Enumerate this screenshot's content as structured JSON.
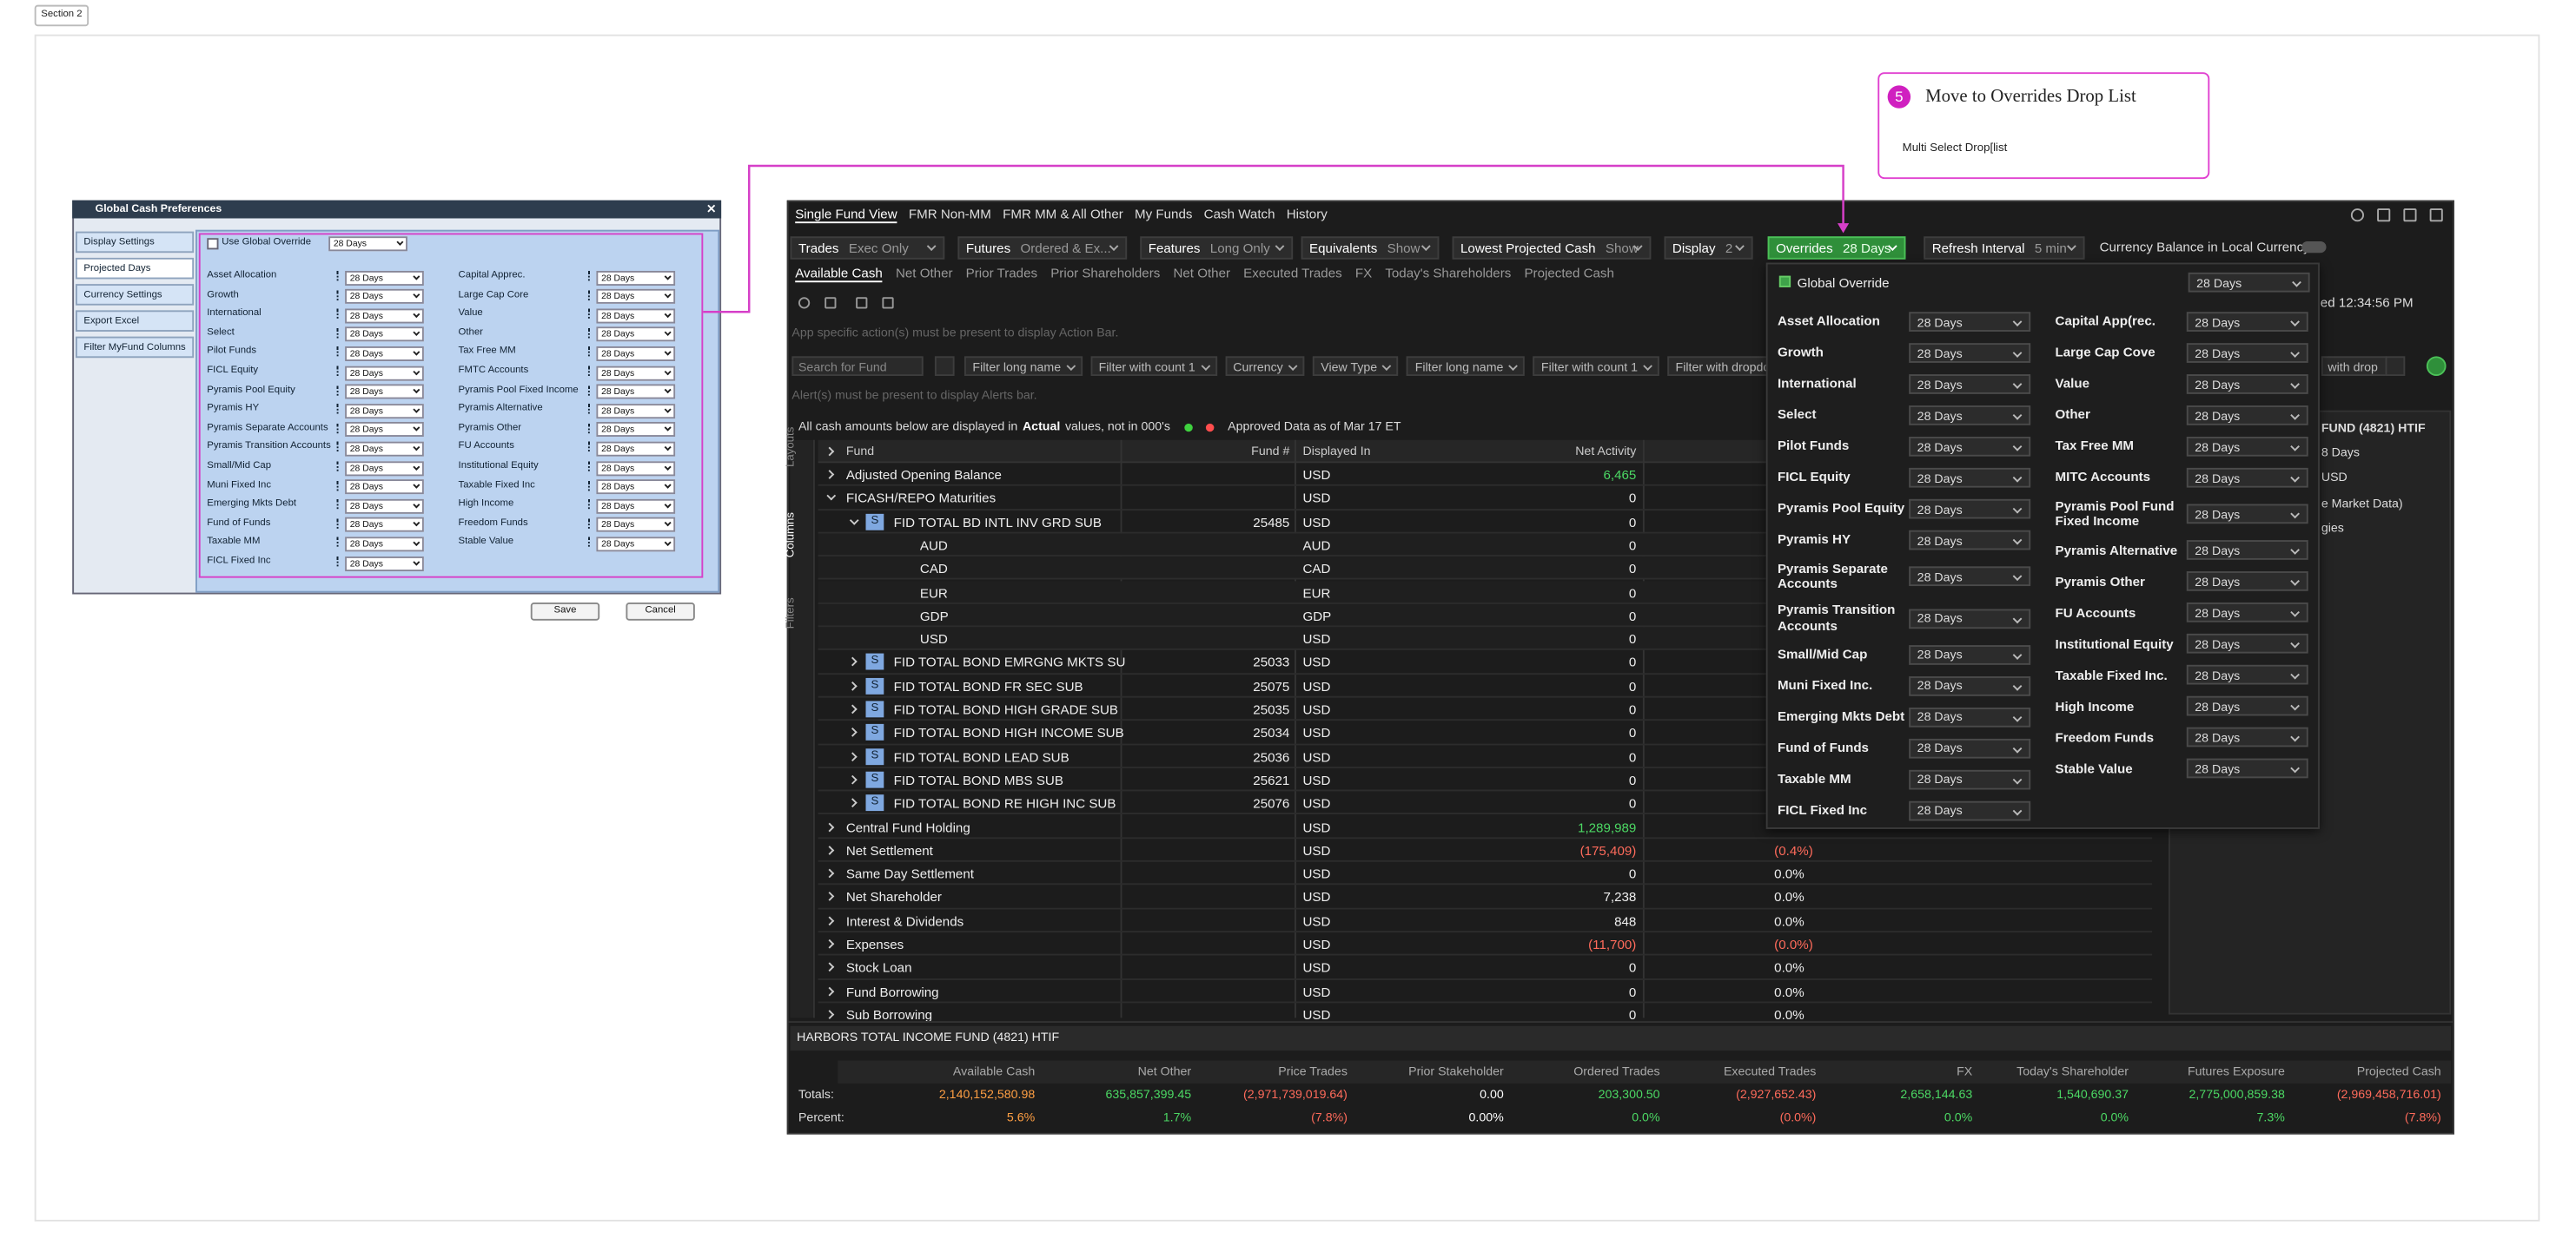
{
  "section_label": "Section 2",
  "callout": {
    "step": "5",
    "title": "Move to Overrides Drop List",
    "text": "Multi Select Drop[list"
  },
  "legacy_dialog": {
    "title": "Global Cash Preferences",
    "nav": [
      "Display Settings",
      "Projected Days",
      "Currency Settings",
      "Export Excel",
      "Filter MyFund Columns"
    ],
    "global_override": {
      "label": "Use Global Override",
      "value": "28 Days"
    },
    "left_fields": [
      {
        "label": "Asset Allocation",
        "value": "28 Days"
      },
      {
        "label": "Growth",
        "value": "28 Days"
      },
      {
        "label": "International",
        "value": "28 Days"
      },
      {
        "label": "Select",
        "value": "28 Days"
      },
      {
        "label": "Pilot Funds",
        "value": "28 Days"
      },
      {
        "label": "FICL Equity",
        "value": "28 Days"
      },
      {
        "label": "Pyramis Pool Equity",
        "value": "28 Days"
      },
      {
        "label": "Pyramis HY",
        "value": "28 Days"
      },
      {
        "label": "Pyramis Separate Accounts",
        "value": "28 Days"
      },
      {
        "label": "Pyramis Transition Accounts",
        "value": "28 Days"
      },
      {
        "label": "Small/Mid Cap",
        "value": "28 Days"
      },
      {
        "label": "Muni Fixed Inc",
        "value": "28 Days"
      },
      {
        "label": "Emerging Mkts Debt",
        "value": "28 Days"
      },
      {
        "label": "Fund of Funds",
        "value": "28 Days"
      },
      {
        "label": "Taxable MM",
        "value": "28 Days"
      },
      {
        "label": "FICL Fixed Inc",
        "value": "28 Days"
      }
    ],
    "right_fields": [
      {
        "label": "Capital Apprec.",
        "value": "28 Days"
      },
      {
        "label": "Large Cap Core",
        "value": "28 Days"
      },
      {
        "label": "Value",
        "value": "28 Days"
      },
      {
        "label": "Other",
        "value": "28 Days"
      },
      {
        "label": "Tax Free MM",
        "value": "28 Days"
      },
      {
        "label": "FMTC Accounts",
        "value": "28 Days"
      },
      {
        "label": "Pyramis Pool Fixed Income",
        "value": "28 Days"
      },
      {
        "label": "Pyramis Alternative",
        "value": "28 Days"
      },
      {
        "label": "Pyramis Other",
        "value": "28 Days"
      },
      {
        "label": "FU Accounts",
        "value": "28 Days"
      },
      {
        "label": "Institutional Equity",
        "value": "28 Days"
      },
      {
        "label": "Taxable Fixed Inc",
        "value": "28 Days"
      },
      {
        "label": "High Income",
        "value": "28 Days"
      },
      {
        "label": "Freedom Funds",
        "value": "28 Days"
      },
      {
        "label": "Stable Value",
        "value": "28 Days"
      }
    ],
    "buttons": [
      "Save",
      "Cancel"
    ]
  },
  "app": {
    "tabs": [
      "Single Fund View",
      "FMR Non-MM",
      "FMR MM & All Other",
      "My Funds",
      "Cash Watch",
      "History"
    ],
    "toolbar": [
      {
        "label": "Trades",
        "value": "Exec Only"
      },
      {
        "label": "Futures",
        "value": "Ordered & Ex..."
      },
      {
        "label": "Features",
        "value": "Long Only"
      },
      {
        "label": "Equivalents",
        "value": "Show"
      },
      {
        "label": "Lowest Projected Cash",
        "value": "Show"
      },
      {
        "label": "Display",
        "value": "2"
      },
      {
        "label": "Overrides",
        "value": "28 Days"
      },
      {
        "label": "Refresh Interval",
        "value": "5 min"
      }
    ],
    "currency_toggle": "Currency Balance in Local Currency",
    "subtabs": [
      "Available Cash",
      "Net Other",
      "Prior Trades",
      "Prior Shareholders",
      "Net Other",
      "Executed Trades",
      "FX",
      "Today's Shareholders",
      "Projected Cash"
    ],
    "refreshed": "hed 12:34:56 PM",
    "action_bar": "App specific action(s) must be present to display Action Bar.",
    "search_placeholder": "Search for Fund",
    "filters": [
      "Filter long name",
      "Filter with count  1",
      "Currency",
      "View Type",
      "Filter long name",
      "Filter with count  1",
      "Filter with dropdown"
    ],
    "filter_tail": "with drop",
    "alert_bar": "Alert(s) must be present to display Alerts bar.",
    "info": {
      "pre": "All cash amounts below are displayed in",
      "bold": "Actual",
      "post": "values, not in 000's",
      "approved": "Approved Data as of Mar 17 ET"
    },
    "side_tabs": [
      "Layouts",
      "Columns",
      "Filters"
    ],
    "grid": {
      "columns": [
        "Fund",
        "Fund #",
        "Displayed In",
        "Net Activity"
      ],
      "rows": [
        {
          "name": "Adjusted Opening Balance",
          "currency": "USD",
          "net": "6,465",
          "color": "#4cd964"
        },
        {
          "name": "FICASH/REPO Maturities",
          "currency": "USD",
          "net": "0",
          "children": [
            {
              "name": "FID TOTAL BD INTL INV GRD SUB",
              "badge": "S",
              "fund_no": "25485",
              "currency": "USD",
              "net": "0",
              "children": [
                {
                  "name": "AUD",
                  "currency": "AUD",
                  "net": "0"
                },
                {
                  "name": "CAD",
                  "currency": "CAD",
                  "net": "0"
                },
                {
                  "name": "EUR",
                  "currency": "EUR",
                  "net": "0"
                },
                {
                  "name": "GDP",
                  "currency": "GDP",
                  "net": "0"
                },
                {
                  "name": "USD",
                  "currency": "USD",
                  "net": "0"
                }
              ]
            },
            {
              "name": "FID TOTAL BOND EMRGNG MKTS SU",
              "badge": "S",
              "fund_no": "25033",
              "currency": "USD",
              "net": "0"
            },
            {
              "name": "FID TOTAL BOND FR SEC SUB",
              "badge": "S",
              "fund_no": "25075",
              "currency": "USD",
              "net": "0"
            },
            {
              "name": "FID TOTAL BOND HIGH GRADE SUB",
              "badge": "S",
              "fund_no": "25035",
              "currency": "USD",
              "net": "0"
            },
            {
              "name": "FID TOTAL BOND HIGH INCOME SUB",
              "badge": "S",
              "fund_no": "25034",
              "currency": "USD",
              "net": "0"
            },
            {
              "name": "FID TOTAL BOND LEAD SUB",
              "badge": "S",
              "fund_no": "25036",
              "currency": "USD",
              "net": "0"
            },
            {
              "name": "FID TOTAL BOND MBS SUB",
              "badge": "S",
              "fund_no": "25621",
              "currency": "USD",
              "net": "0"
            },
            {
              "name": "FID TOTAL BOND RE HIGH INC SUB",
              "badge": "S",
              "fund_no": "25076",
              "currency": "USD",
              "net": "0"
            }
          ]
        },
        {
          "name": "Central Fund Holding",
          "currency": "USD",
          "net": "1,289,989",
          "color": "#4cd964"
        },
        {
          "name": "Net Settlement",
          "currency": "USD",
          "net": "(175,409)",
          "pct": "(0.4%)",
          "color": "#ff6b5b"
        },
        {
          "name": "Same Day Settlement",
          "currency": "USD",
          "net": "0",
          "pct": "0.0%"
        },
        {
          "name": "Net Shareholder",
          "currency": "USD",
          "net": "7,238",
          "pct": "0.0%"
        },
        {
          "name": "Interest & Dividends",
          "currency": "USD",
          "net": "848",
          "pct": "0.0%"
        },
        {
          "name": "Expenses",
          "currency": "USD",
          "net": "(11,700)",
          "pct": "(0.0%)",
          "color": "#ff6b5b"
        },
        {
          "name": "Stock Loan",
          "currency": "USD",
          "net": "0",
          "pct": "0.0%"
        },
        {
          "name": "Fund Borrowing",
          "currency": "USD",
          "net": "0",
          "pct": "0.0%"
        },
        {
          "name": "Sub Borrowing",
          "currency": "USD",
          "net": "0",
          "pct": "0.0%"
        }
      ]
    },
    "side_panel": [
      "FUND (4821) HTIF",
      "8 Days",
      "USD",
      "e Market Data)",
      "gies"
    ],
    "summary": {
      "title": "HARBORS TOTAL INCOME FUND (4821) HTIF",
      "columns": [
        "Available Cash",
        "Net Other",
        "Price Trades",
        "Prior Stakeholder",
        "Ordered Trades",
        "Executed Trades",
        "FX",
        "Today's Shareholder",
        "Futures Exposure",
        "Projected Cash"
      ],
      "rows": [
        {
          "label": "Totals:",
          "values": [
            "2,140,152,580.98",
            "635,857,399.45",
            "(2,971,739,019.64)",
            "0.00",
            "203,300.50",
            "(2,927,652.43)",
            "2,658,144.63",
            "1,540,690.37",
            "2,775,000,859.38",
            "(2,969,458,716.01)"
          ],
          "colors": [
            "#ff9f43",
            "#4cd964",
            "#ff6b5b",
            "#ffffff",
            "#4cd964",
            "#ff6b5b",
            "#4cd964",
            "#4cd964",
            "#4cd964",
            "#ff6b5b"
          ]
        },
        {
          "label": "Percent:",
          "values": [
            "5.6%",
            "1.7%",
            "(7.8%)",
            "0.00%",
            "0.0%",
            "(0.0%)",
            "0.0%",
            "0.0%",
            "7.3%",
            "(7.8%)"
          ],
          "colors": [
            "#ff9f43",
            "#4cd964",
            "#ff6b5b",
            "#ffffff",
            "#4cd964",
            "#ff6b5b",
            "#4cd964",
            "#4cd964",
            "#4cd964",
            "#ff6b5b"
          ]
        }
      ]
    },
    "overrides_panel": {
      "global": {
        "label": "Global Override",
        "value": "28 Days"
      },
      "left": [
        {
          "label": "Asset Allocation",
          "value": "28 Days"
        },
        {
          "label": "Growth",
          "value": "28 Days"
        },
        {
          "label": "International",
          "value": "28 Days"
        },
        {
          "label": "Select",
          "value": "28 Days"
        },
        {
          "label": "Pilot Funds",
          "value": "28 Days"
        },
        {
          "label": "FICL Equity",
          "value": "28 Days"
        },
        {
          "label": "Pyramis Pool Equity",
          "value": "28 Days"
        },
        {
          "label": "Pyramis HY",
          "value": "28 Days"
        },
        {
          "label": "Pyramis Separate Accounts",
          "value": "28 Days"
        },
        {
          "label": "Pyramis Transition Accounts",
          "value": "28 Days"
        },
        {
          "label": "Small/Mid Cap",
          "value": "28 Days"
        },
        {
          "label": "Muni Fixed Inc.",
          "value": "28 Days"
        },
        {
          "label": "Emerging Mkts Debt",
          "value": "28 Days"
        },
        {
          "label": "Fund of Funds",
          "value": "28 Days"
        },
        {
          "label": "Taxable MM",
          "value": "28 Days"
        },
        {
          "label": "FICL Fixed Inc",
          "value": "28 Days"
        }
      ],
      "right": [
        {
          "label": "Capital App(rec.",
          "value": "28 Days"
        },
        {
          "label": "Large Cap Cove",
          "value": "28 Days"
        },
        {
          "label": "Value",
          "value": "28 Days"
        },
        {
          "label": "Other",
          "value": "28 Days"
        },
        {
          "label": "Tax Free MM",
          "value": "28 Days"
        },
        {
          "label": "MITC Accounts",
          "value": "28 Days"
        },
        {
          "label": "Pyramis Pool Fund Fixed Income",
          "value": "28 Days"
        },
        {
          "label": "Pyramis Alternative",
          "value": "28 Days"
        },
        {
          "label": "Pyramis Other",
          "value": "28 Days"
        },
        {
          "label": "FU Accounts",
          "value": "28 Days"
        },
        {
          "label": "Institutional Equity",
          "value": "28 Days"
        },
        {
          "label": "Taxable Fixed Inc.",
          "value": "28 Days"
        },
        {
          "label": "High Income",
          "value": "28 Days"
        },
        {
          "label": "Freedom Funds",
          "value": "28 Days"
        },
        {
          "label": "Stable Value",
          "value": "28 Days"
        }
      ]
    }
  }
}
